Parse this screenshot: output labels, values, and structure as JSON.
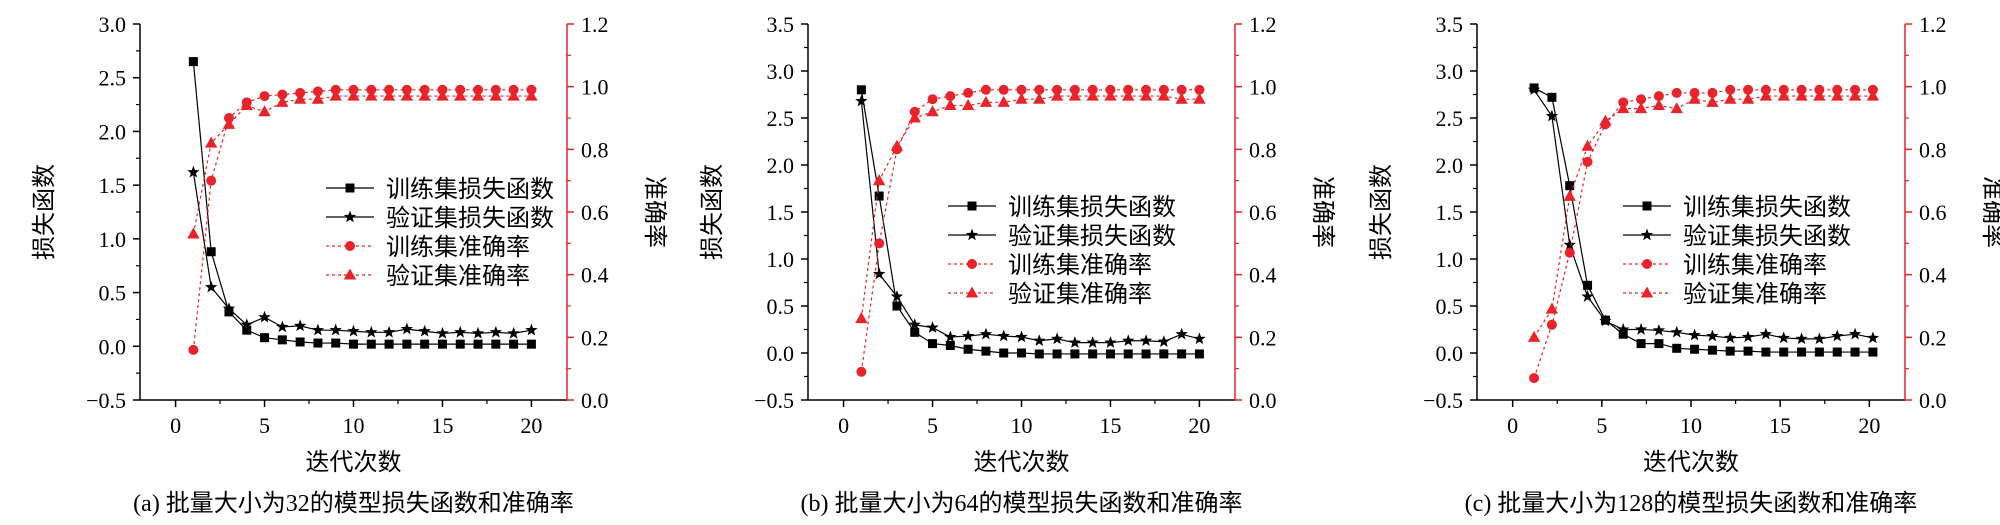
{
  "chart_data": [
    {
      "type": "line",
      "caption": "(a) 批量大小为32的模型损失函数和准确率",
      "xlabel": "迭代次数",
      "ylabel_left": "损失函数",
      "ylabel_right": "准确率",
      "xlim": [
        -2,
        22
      ],
      "xticks": [
        0,
        5,
        10,
        15,
        20
      ],
      "ylim_left": [
        -0.5,
        3.0
      ],
      "yticks_left": [
        "-0.5",
        "0.0",
        "0.5",
        "1.0",
        "1.5",
        "2.0",
        "2.5",
        "3.0"
      ],
      "ylim_right": [
        0.0,
        1.2
      ],
      "yticks_right": [
        "0.0",
        "0.2",
        "0.4",
        "0.6",
        "0.8",
        "1.0",
        "1.2"
      ],
      "legend_position": "center-right",
      "x": [
        1,
        2,
        3,
        4,
        5,
        6,
        7,
        8,
        9,
        10,
        11,
        12,
        13,
        14,
        15,
        16,
        17,
        18,
        19,
        20
      ],
      "series": [
        {
          "name": "训练集损失函数",
          "axis": "left",
          "marker": "square",
          "color": "#000000",
          "dashed": false,
          "values": [
            2.65,
            0.88,
            0.32,
            0.15,
            0.08,
            0.06,
            0.04,
            0.03,
            0.03,
            0.02,
            0.02,
            0.02,
            0.02,
            0.02,
            0.02,
            0.02,
            0.02,
            0.02,
            0.02,
            0.02
          ]
        },
        {
          "name": "验证集损失函数",
          "axis": "left",
          "marker": "star",
          "color": "#000000",
          "dashed": false,
          "values": [
            1.62,
            0.55,
            0.35,
            0.2,
            0.27,
            0.18,
            0.19,
            0.15,
            0.15,
            0.14,
            0.13,
            0.13,
            0.16,
            0.14,
            0.12,
            0.13,
            0.12,
            0.13,
            0.12,
            0.15
          ]
        },
        {
          "name": "训练集准确率",
          "axis": "right",
          "marker": "circle",
          "color": "#e8242a",
          "dashed": true,
          "values": [
            0.16,
            0.7,
            0.9,
            0.95,
            0.97,
            0.975,
            0.98,
            0.985,
            0.99,
            0.99,
            0.99,
            0.99,
            0.99,
            0.99,
            0.99,
            0.99,
            0.99,
            0.99,
            0.99,
            0.99
          ]
        },
        {
          "name": "验证集准确率",
          "axis": "right",
          "marker": "triangle",
          "color": "#e8242a",
          "dashed": true,
          "values": [
            0.53,
            0.82,
            0.88,
            0.94,
            0.92,
            0.95,
            0.96,
            0.96,
            0.97,
            0.97,
            0.97,
            0.97,
            0.97,
            0.97,
            0.97,
            0.97,
            0.97,
            0.97,
            0.97,
            0.97
          ]
        }
      ]
    },
    {
      "type": "line",
      "caption": "(b) 批量大小为64的模型损失函数和准确率",
      "xlabel": "迭代次数",
      "ylabel_left": "损失函数",
      "ylabel_right": "准确率",
      "xlim": [
        -2,
        22
      ],
      "xticks": [
        0,
        5,
        10,
        15,
        20
      ],
      "ylim_left": [
        -0.5,
        3.5
      ],
      "yticks_left": [
        "-0.5",
        "0.0",
        "0.5",
        "1.0",
        "1.5",
        "2.0",
        "2.5",
        "3.0",
        "3.5"
      ],
      "ylim_right": [
        0.0,
        1.2
      ],
      "yticks_right": [
        "0.0",
        "0.2",
        "0.4",
        "0.6",
        "0.8",
        "1.0",
        "1.2"
      ],
      "legend_position": "center-right",
      "x": [
        1,
        2,
        3,
        4,
        5,
        6,
        7,
        8,
        9,
        10,
        11,
        12,
        13,
        14,
        15,
        16,
        17,
        18,
        19,
        20
      ],
      "series": [
        {
          "name": "训练集损失函数",
          "axis": "left",
          "marker": "square",
          "color": "#000000",
          "dashed": false,
          "values": [
            2.8,
            1.67,
            0.5,
            0.22,
            0.1,
            0.08,
            0.04,
            0.02,
            0.0,
            0.0,
            -0.01,
            -0.01,
            -0.01,
            -0.01,
            -0.01,
            -0.01,
            -0.01,
            -0.01,
            -0.01,
            -0.01
          ]
        },
        {
          "name": "验证集损失函数",
          "axis": "left",
          "marker": "star",
          "color": "#000000",
          "dashed": false,
          "values": [
            2.68,
            0.84,
            0.6,
            0.3,
            0.27,
            0.17,
            0.18,
            0.2,
            0.18,
            0.17,
            0.13,
            0.15,
            0.11,
            0.11,
            0.11,
            0.13,
            0.13,
            0.12,
            0.2,
            0.15
          ]
        },
        {
          "name": "训练集准确率",
          "axis": "right",
          "marker": "circle",
          "color": "#e8242a",
          "dashed": true,
          "values": [
            0.09,
            0.5,
            0.8,
            0.92,
            0.96,
            0.97,
            0.98,
            0.99,
            0.99,
            0.99,
            0.99,
            0.99,
            0.99,
            0.99,
            0.99,
            0.99,
            0.99,
            0.99,
            0.99,
            0.99
          ]
        },
        {
          "name": "验证集准确率",
          "axis": "right",
          "marker": "triangle",
          "color": "#e8242a",
          "dashed": true,
          "values": [
            0.26,
            0.7,
            0.81,
            0.9,
            0.92,
            0.94,
            0.94,
            0.95,
            0.95,
            0.96,
            0.96,
            0.97,
            0.97,
            0.97,
            0.97,
            0.97,
            0.97,
            0.97,
            0.96,
            0.96
          ]
        }
      ]
    },
    {
      "type": "line",
      "caption": "(c) 批量大小为128的模型损失函数和准确率",
      "xlabel": "迭代次数",
      "ylabel_left": "损失函数",
      "ylabel_right": "准确率",
      "xlim": [
        -2,
        22
      ],
      "xticks": [
        0,
        5,
        10,
        15,
        20
      ],
      "ylim_left": [
        -0.5,
        3.5
      ],
      "yticks_left": [
        "-0.5",
        "0.0",
        "0.5",
        "1.0",
        "1.5",
        "2.0",
        "2.5",
        "3.0",
        "3.5"
      ],
      "ylim_right": [
        0.0,
        1.2
      ],
      "yticks_right": [
        "0.0",
        "0.2",
        "0.4",
        "0.6",
        "0.8",
        "1.0",
        "1.2"
      ],
      "legend_position": "center-right",
      "x": [
        1.2,
        2.2,
        3.2,
        4.2,
        5.2,
        6.2,
        7.2,
        8.2,
        9.2,
        10.2,
        11.2,
        12.2,
        13.2,
        14.2,
        15.2,
        16.2,
        17.2,
        18.2,
        19.2,
        20.2
      ],
      "series": [
        {
          "name": "训练集损失函数",
          "axis": "left",
          "marker": "square",
          "color": "#000000",
          "dashed": false,
          "values": [
            2.82,
            2.72,
            1.78,
            0.72,
            0.35,
            0.2,
            0.1,
            0.1,
            0.05,
            0.04,
            0.03,
            0.02,
            0.02,
            0.01,
            0.01,
            0.01,
            0.01,
            0.01,
            0.01,
            0.01
          ]
        },
        {
          "name": "验证集损失函数",
          "axis": "left",
          "marker": "star",
          "color": "#000000",
          "dashed": false,
          "values": [
            2.8,
            2.52,
            1.15,
            0.6,
            0.34,
            0.25,
            0.25,
            0.24,
            0.22,
            0.19,
            0.18,
            0.16,
            0.17,
            0.2,
            0.16,
            0.15,
            0.15,
            0.18,
            0.2,
            0.16
          ]
        },
        {
          "name": "训练集准确率",
          "axis": "right",
          "marker": "circle",
          "color": "#e8242a",
          "dashed": true,
          "values": [
            0.07,
            0.24,
            0.47,
            0.76,
            0.88,
            0.95,
            0.96,
            0.97,
            0.98,
            0.98,
            0.98,
            0.99,
            0.99,
            0.99,
            0.99,
            0.99,
            0.99,
            0.99,
            0.99,
            0.99
          ]
        },
        {
          "name": "验证集准确率",
          "axis": "right",
          "marker": "triangle",
          "color": "#e8242a",
          "dashed": true,
          "values": [
            0.2,
            0.29,
            0.65,
            0.81,
            0.89,
            0.93,
            0.93,
            0.94,
            0.93,
            0.96,
            0.95,
            0.96,
            0.96,
            0.97,
            0.97,
            0.97,
            0.97,
            0.97,
            0.97,
            0.97
          ]
        }
      ]
    }
  ]
}
